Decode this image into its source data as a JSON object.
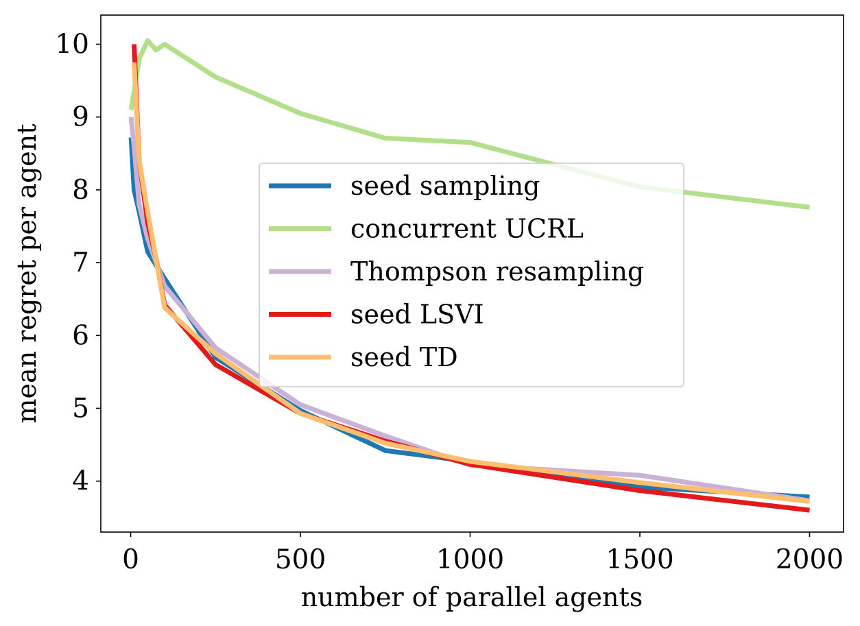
{
  "chart_data": {
    "type": "line",
    "title": "",
    "xlabel": "number of parallel agents",
    "ylabel": "mean regret per agent",
    "xlim": [
      -88,
      2100
    ],
    "ylim": [
      3.3,
      10.4
    ],
    "xticks": [
      0,
      500,
      1000,
      1500,
      2000
    ],
    "yticks": [
      4,
      5,
      6,
      7,
      8,
      9,
      10
    ],
    "grid": false,
    "legend": "center",
    "series": [
      {
        "name": "seed sampling",
        "color": "#1f77b4",
        "x": [
          1,
          10,
          25,
          50,
          100,
          250,
          500,
          750,
          1000,
          1500,
          2000
        ],
        "y": [
          8.72,
          8.0,
          7.7,
          7.15,
          6.78,
          5.7,
          4.97,
          4.42,
          4.27,
          3.92,
          3.78
        ]
      },
      {
        "name": "concurrent UCRL",
        "color": "#b2df8a",
        "x": [
          1,
          10,
          25,
          50,
          75,
          100,
          250,
          500,
          750,
          1000,
          1500,
          2000
        ],
        "y": [
          9.1,
          9.35,
          9.8,
          10.05,
          9.92,
          10.0,
          9.55,
          9.05,
          8.71,
          8.65,
          8.04,
          7.76
        ]
      },
      {
        "name": "Thompson resampling",
        "color": "#cab2d6",
        "x": [
          1,
          10,
          25,
          50,
          100,
          250,
          500,
          750,
          1000,
          1500,
          2000
        ],
        "y": [
          9.0,
          8.6,
          7.8,
          7.33,
          6.68,
          5.83,
          5.05,
          4.62,
          4.22,
          4.08,
          3.73
        ]
      },
      {
        "name": "seed LSVI",
        "color": "#e31a1c",
        "x": [
          10,
          25,
          50,
          75,
          100,
          250,
          500,
          750,
          1000,
          1500,
          2000
        ],
        "y": [
          10.0,
          8.4,
          7.55,
          7.05,
          6.42,
          5.6,
          4.93,
          4.55,
          4.23,
          3.87,
          3.6
        ]
      },
      {
        "name": "seed TD",
        "color": "#fdbf6f",
        "x": [
          10,
          25,
          50,
          100,
          250,
          500,
          750,
          1000,
          1500,
          2000
        ],
        "y": [
          9.75,
          8.4,
          7.7,
          6.38,
          5.75,
          4.93,
          4.52,
          4.27,
          3.98,
          3.72
        ]
      }
    ]
  }
}
